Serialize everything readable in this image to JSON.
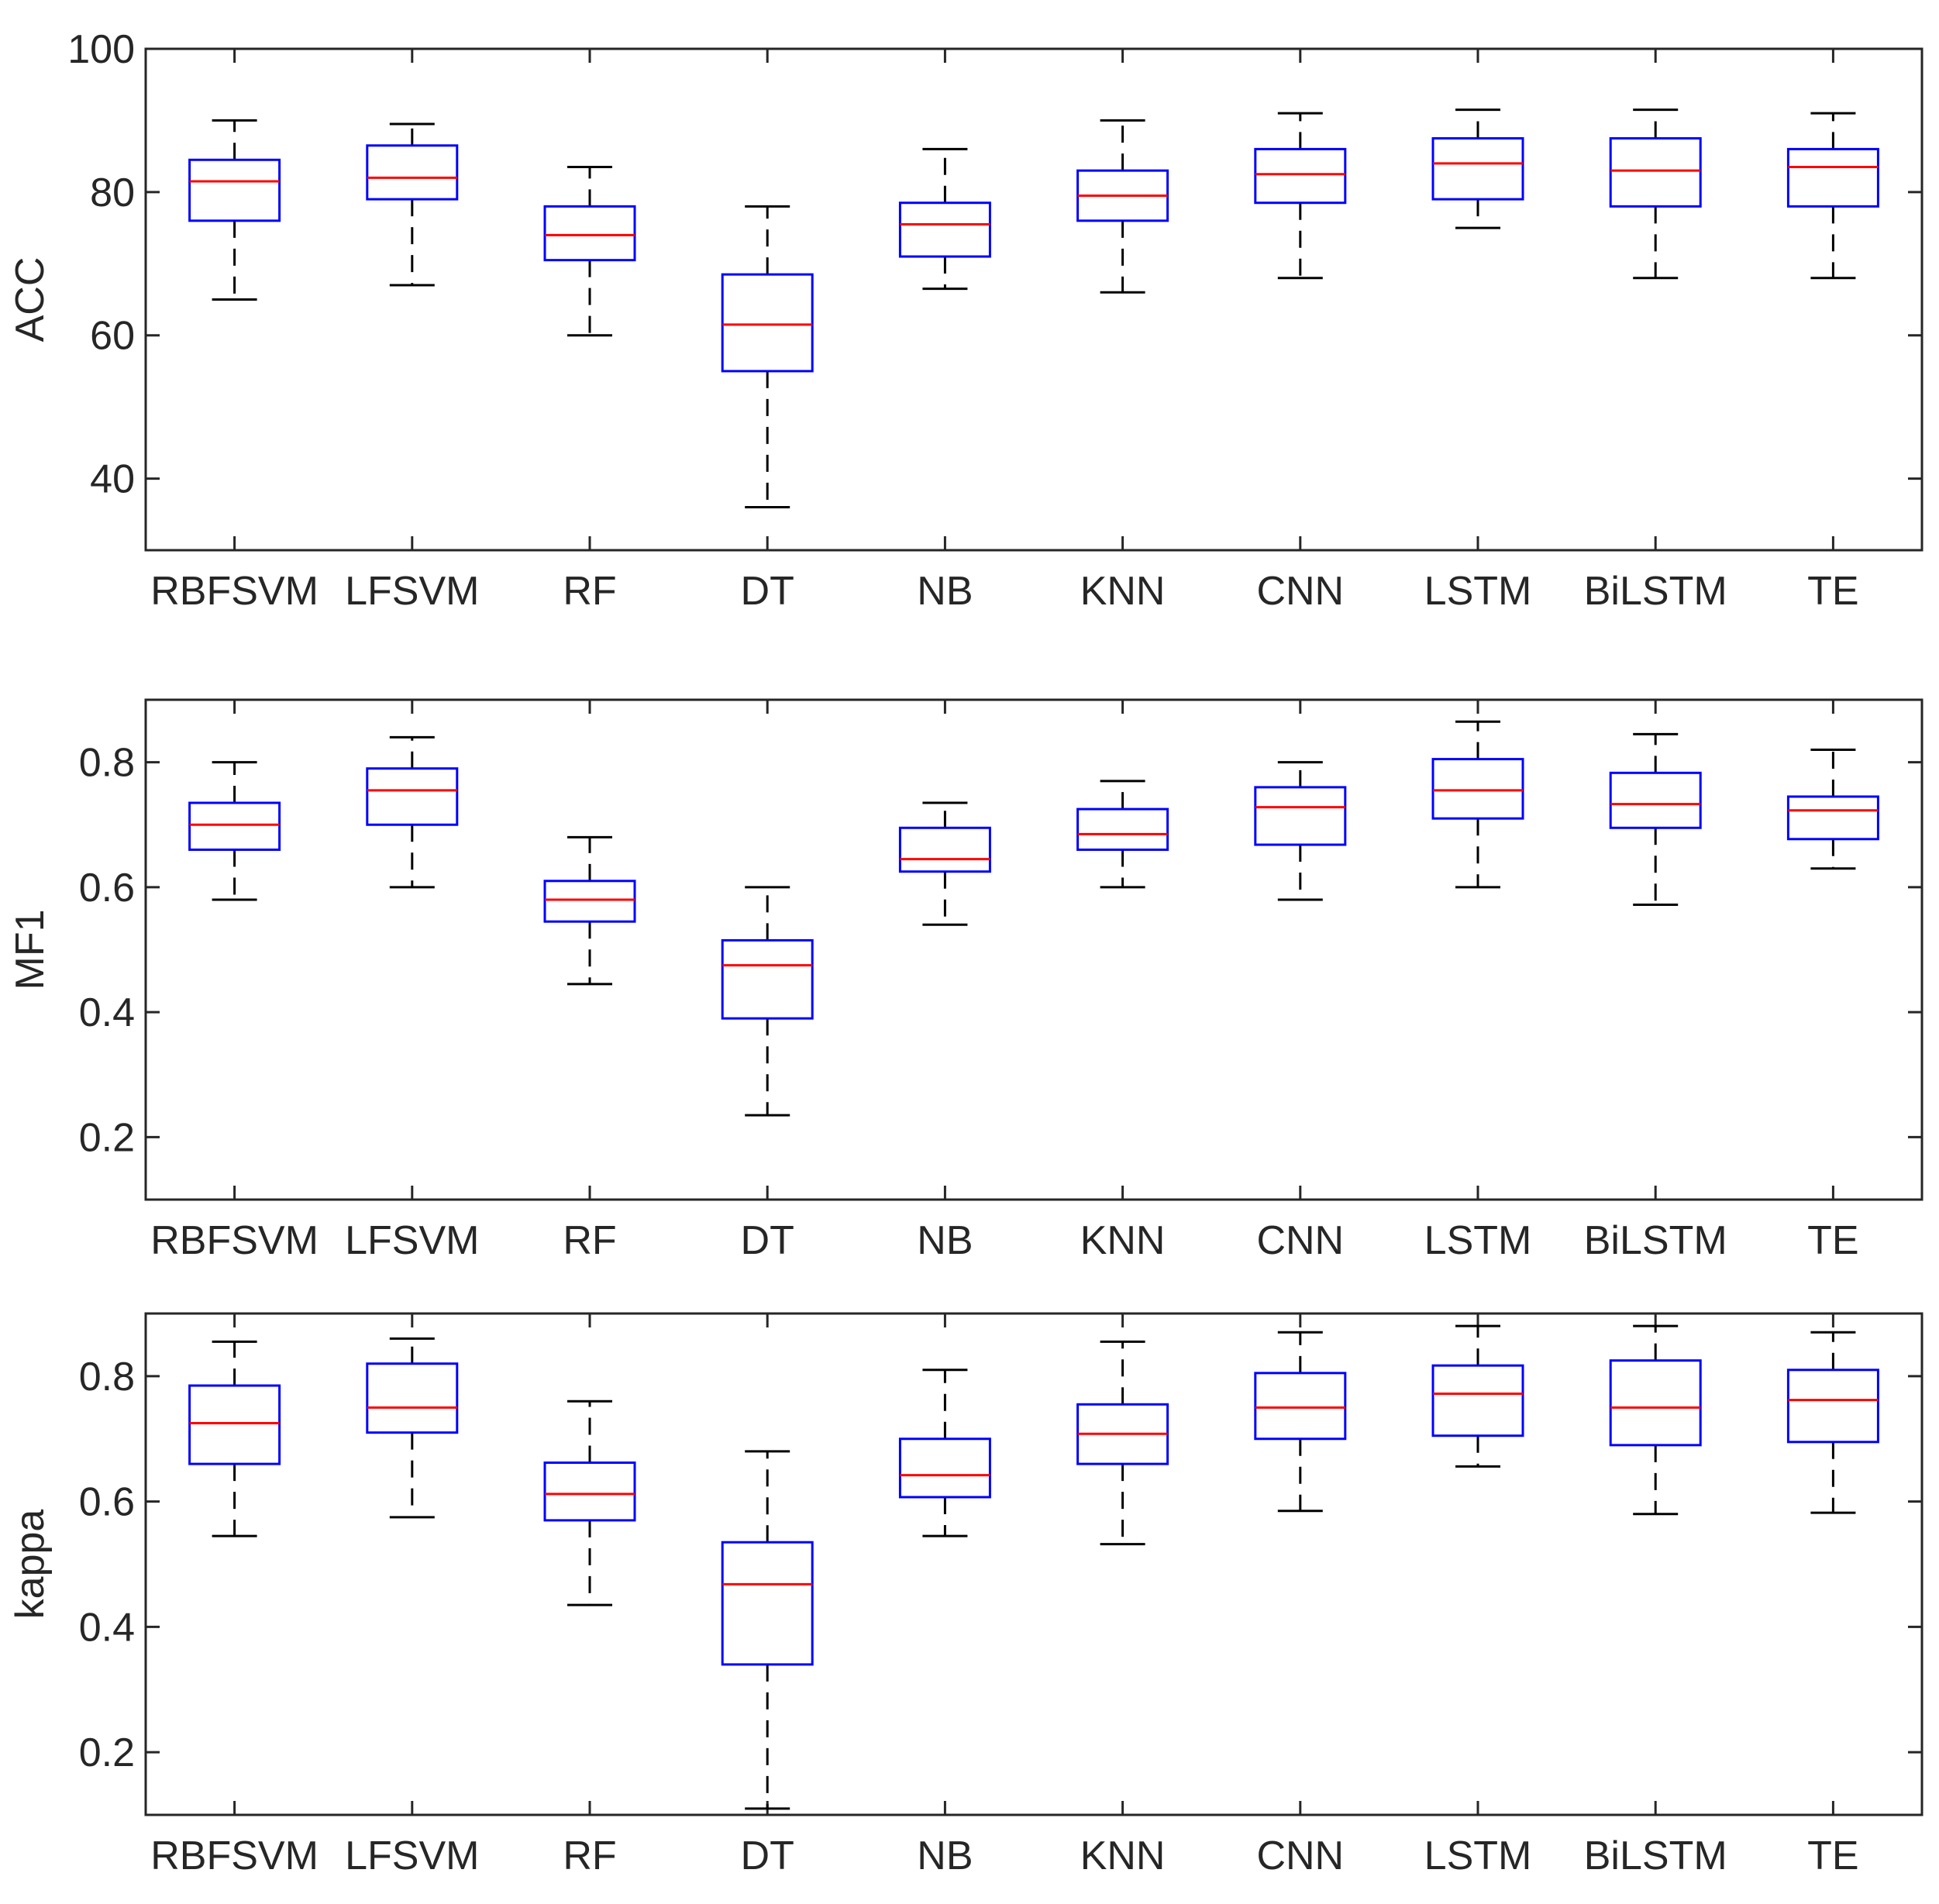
{
  "chart_data": [
    {
      "type": "boxplot",
      "ylabel": "ACC",
      "ylim": [
        30,
        100
      ],
      "yticks": [
        40,
        60,
        80,
        100
      ],
      "categories": [
        "RBFSVM",
        "LFSVM",
        "RF",
        "DT",
        "NB",
        "KNN",
        "CNN",
        "LSTM",
        "BiLSTM",
        "TE"
      ],
      "boxes": [
        {
          "min": 65,
          "q1": 76,
          "median": 81.5,
          "q3": 84.5,
          "max": 90
        },
        {
          "min": 67,
          "q1": 79,
          "median": 82,
          "q3": 86.5,
          "max": 89.5
        },
        {
          "min": 60,
          "q1": 70.5,
          "median": 74,
          "q3": 78,
          "max": 83.5
        },
        {
          "min": 36,
          "q1": 55,
          "median": 61.5,
          "q3": 68.5,
          "max": 78
        },
        {
          "min": 66.5,
          "q1": 71,
          "median": 75.5,
          "q3": 78.5,
          "max": 86
        },
        {
          "min": 66,
          "q1": 76,
          "median": 79.5,
          "q3": 83,
          "max": 90
        },
        {
          "min": 68,
          "q1": 78.5,
          "median": 82.5,
          "q3": 86,
          "max": 91
        },
        {
          "min": 75,
          "q1": 79,
          "median": 84,
          "q3": 87.5,
          "max": 91.5
        },
        {
          "min": 68,
          "q1": 78,
          "median": 83,
          "q3": 87.5,
          "max": 91.5
        },
        {
          "min": 68,
          "q1": 78,
          "median": 83.5,
          "q3": 86,
          "max": 91
        }
      ]
    },
    {
      "type": "boxplot",
      "ylabel": "MF1",
      "ylim": [
        0.1,
        0.9
      ],
      "yticks": [
        0.2,
        0.4,
        0.6,
        0.8
      ],
      "categories": [
        "RBFSVM",
        "LFSVM",
        "RF",
        "DT",
        "NB",
        "KNN",
        "CNN",
        "LSTM",
        "BiLSTM",
        "TE"
      ],
      "boxes": [
        {
          "min": 0.58,
          "q1": 0.66,
          "median": 0.7,
          "q3": 0.735,
          "max": 0.8
        },
        {
          "min": 0.6,
          "q1": 0.7,
          "median": 0.755,
          "q3": 0.79,
          "max": 0.84
        },
        {
          "min": 0.445,
          "q1": 0.545,
          "median": 0.58,
          "q3": 0.61,
          "max": 0.68
        },
        {
          "min": 0.235,
          "q1": 0.39,
          "median": 0.475,
          "q3": 0.515,
          "max": 0.6
        },
        {
          "min": 0.54,
          "q1": 0.625,
          "median": 0.645,
          "q3": 0.695,
          "max": 0.735
        },
        {
          "min": 0.6,
          "q1": 0.66,
          "median": 0.685,
          "q3": 0.725,
          "max": 0.77
        },
        {
          "min": 0.58,
          "q1": 0.668,
          "median": 0.728,
          "q3": 0.76,
          "max": 0.8
        },
        {
          "min": 0.6,
          "q1": 0.71,
          "median": 0.755,
          "q3": 0.805,
          "max": 0.865
        },
        {
          "min": 0.572,
          "q1": 0.695,
          "median": 0.733,
          "q3": 0.783,
          "max": 0.845
        },
        {
          "min": 0.63,
          "q1": 0.677,
          "median": 0.723,
          "q3": 0.745,
          "max": 0.82
        }
      ]
    },
    {
      "type": "boxplot",
      "ylabel": "kappa",
      "ylim": [
        0.1,
        0.9
      ],
      "yticks": [
        0.2,
        0.4,
        0.6,
        0.8
      ],
      "categories": [
        "RBFSVM",
        "LFSVM",
        "RF",
        "DT",
        "NB",
        "KNN",
        "CNN",
        "LSTM",
        "BiLSTM",
        "TE"
      ],
      "boxes": [
        {
          "min": 0.545,
          "q1": 0.66,
          "median": 0.725,
          "q3": 0.785,
          "max": 0.855
        },
        {
          "min": 0.575,
          "q1": 0.71,
          "median": 0.75,
          "q3": 0.82,
          "max": 0.86
        },
        {
          "min": 0.435,
          "q1": 0.57,
          "median": 0.612,
          "q3": 0.662,
          "max": 0.76
        },
        {
          "min": 0.11,
          "q1": 0.34,
          "median": 0.468,
          "q3": 0.535,
          "max": 0.68
        },
        {
          "min": 0.545,
          "q1": 0.607,
          "median": 0.642,
          "q3": 0.7,
          "max": 0.81
        },
        {
          "min": 0.532,
          "q1": 0.66,
          "median": 0.708,
          "q3": 0.755,
          "max": 0.855
        },
        {
          "min": 0.585,
          "q1": 0.7,
          "median": 0.75,
          "q3": 0.805,
          "max": 0.87
        },
        {
          "min": 0.656,
          "q1": 0.705,
          "median": 0.772,
          "q3": 0.817,
          "max": 0.88
        },
        {
          "min": 0.58,
          "q1": 0.69,
          "median": 0.75,
          "q3": 0.825,
          "max": 0.88
        },
        {
          "min": 0.582,
          "q1": 0.695,
          "median": 0.762,
          "q3": 0.81,
          "max": 0.87
        }
      ]
    }
  ]
}
